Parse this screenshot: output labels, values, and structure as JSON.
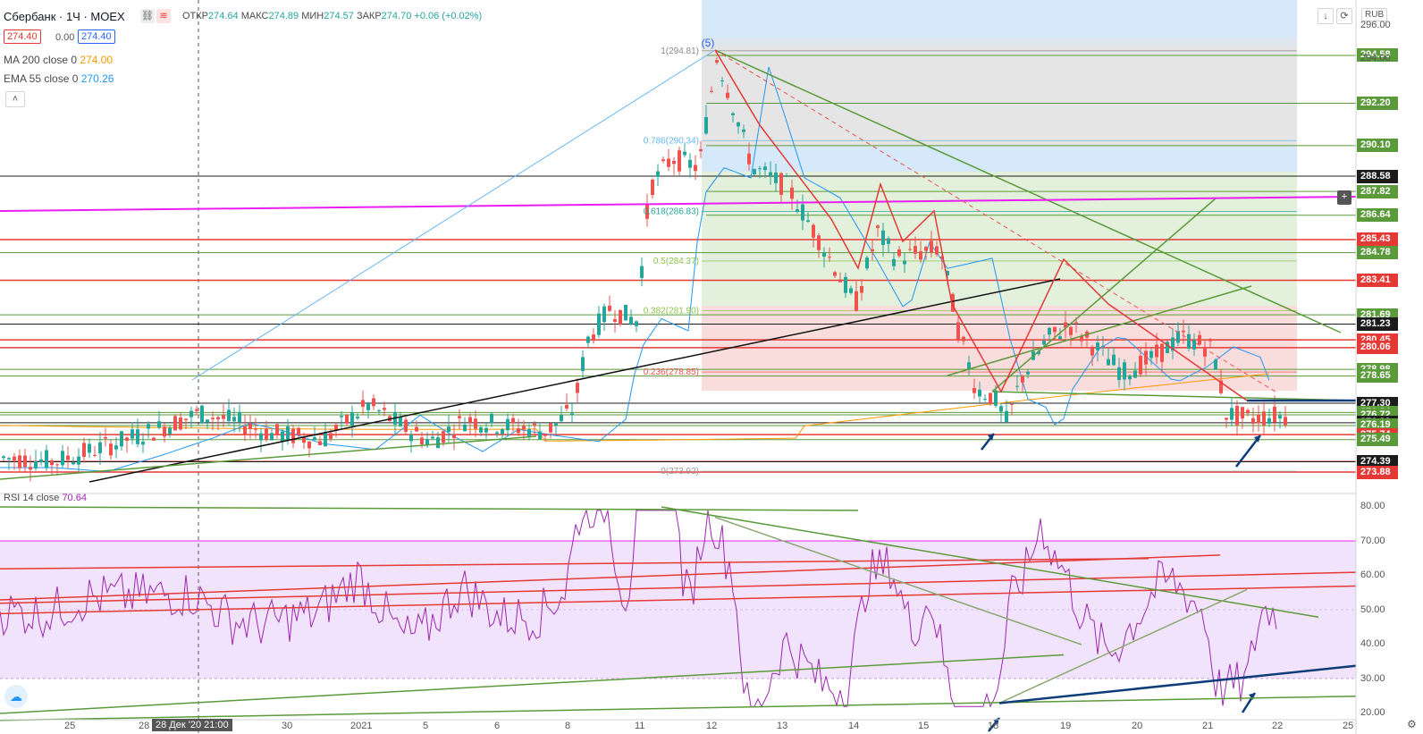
{
  "header": {
    "symbol": "Сбербанк · 1Ч · MOEX",
    "open_label": "ОТКР",
    "open_value": "274.64",
    "high_label": "МАКС",
    "high_value": "274.89",
    "low_label": "МИН",
    "low_value": "274.57",
    "close_label": "ЗАКР",
    "close_value": "274.70",
    "change": "+0.06 (+0.02%)",
    "bid": "274.40",
    "spread": "0.00",
    "ask": "274.40",
    "ma_label": "MA 200 close 0",
    "ma_value": "274.00",
    "ema_label": "EMA 55 close 0",
    "ema_value": "270.26",
    "rsi_label": "RSI 14 close",
    "rsi_value": "70.64",
    "currency": "RUB",
    "crosshair_date": "28 Дек '20   21:00"
  },
  "colors": {
    "up": "#26a69a",
    "down": "#ef5350",
    "level_green": "#5b9a3a",
    "level_red": "#e53935",
    "ma200": "#ff9800",
    "ema55": "#2196f3",
    "rsi": "#9c27b0",
    "magenta": "#e91ef0",
    "navy": "#0d3c78"
  },
  "icons": [
    "logo-icon",
    "scroll-down-icon",
    "screenshot-icon",
    "plus-icon",
    "settings-icon",
    "collapse-icon"
  ],
  "fib": {
    "labels": [
      "1(294.81)",
      "0.786(290.34)",
      "0.618(286.83)",
      "0.5(284.37)",
      "0.382(281.90)",
      "0.236(278.85)",
      "0(273.92)"
    ],
    "wave_label": "(5)"
  },
  "price_axis": {
    "ticks": [
      "296.00",
      "294.00",
      "285.43",
      "283.41",
      "281.23",
      "280.45",
      "280.06",
      "278.98",
      "276.33",
      "274.40",
      "273.88"
    ],
    "labels": [
      {
        "text": "294.58",
        "color": "#5b9a3a"
      },
      {
        "text": "292.20",
        "color": "#5b9a3a"
      },
      {
        "text": "290.10",
        "color": "#5b9a3a"
      },
      {
        "text": "288.58",
        "color": "#1b1b1b"
      },
      {
        "text": "287.82",
        "color": "#5b9a3a"
      },
      {
        "text": "286.64",
        "color": "#5b9a3a"
      },
      {
        "text": "285.43",
        "color": "#e53935"
      },
      {
        "text": "284.78",
        "color": "#5b9a3a"
      },
      {
        "text": "283.41",
        "color": "#e53935"
      },
      {
        "text": "281.69",
        "color": "#5b9a3a"
      },
      {
        "text": "281.23",
        "color": "#1b1b1b"
      },
      {
        "text": "280.45",
        "color": "#e53935"
      },
      {
        "text": "280.06",
        "color": "#e53935"
      },
      {
        "text": "278.98",
        "color": "#5b9a3a"
      },
      {
        "text": "278.65",
        "color": "#5b9a3a"
      },
      {
        "text": "277.30",
        "color": "#1b1b1b"
      },
      {
        "text": "276.84",
        "color": "#5b9a3a"
      },
      {
        "text": "276.72",
        "color": "#5b9a3a"
      },
      {
        "text": "276.33",
        "color": "#1b1b1b"
      },
      {
        "text": "276.19",
        "color": "#5b9a3a"
      },
      {
        "text": "275.74",
        "color": "#e53935"
      },
      {
        "text": "275.49",
        "color": "#5b9a3a"
      },
      {
        "text": "274.40",
        "color": "#e53935"
      },
      {
        "text": "274.39",
        "color": "#1b1b1b"
      },
      {
        "text": "273.88",
        "color": "#e53935"
      }
    ]
  },
  "rsi_axis": [
    "80.00",
    "70.00",
    "60.00",
    "50.00",
    "40.00",
    "30.00",
    "20.00"
  ],
  "time_axis": [
    "25",
    "28",
    "30",
    "2021",
    "5",
    "6",
    "8",
    "11",
    "12",
    "13",
    "14",
    "15",
    "18",
    "19",
    "20",
    "21",
    "22",
    "25"
  ]
}
